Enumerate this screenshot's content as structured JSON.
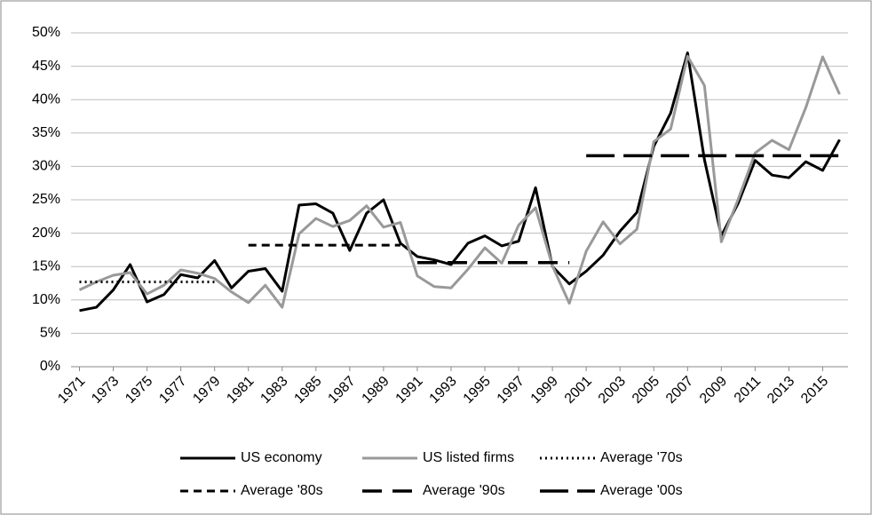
{
  "chart_data": {
    "type": "line",
    "x": [
      1971,
      1972,
      1973,
      1974,
      1975,
      1976,
      1977,
      1978,
      1979,
      1980,
      1981,
      1982,
      1983,
      1984,
      1985,
      1986,
      1987,
      1988,
      1989,
      1990,
      1991,
      1992,
      1993,
      1994,
      1995,
      1996,
      1997,
      1998,
      1999,
      2000,
      2001,
      2002,
      2003,
      2004,
      2005,
      2006,
      2007,
      2008,
      2009,
      2010,
      2011,
      2012,
      2013,
      2014,
      2015,
      2016
    ],
    "xlim": [
      1970.5,
      2016.5
    ],
    "xticks": [
      1971,
      1973,
      1975,
      1977,
      1979,
      1981,
      1983,
      1985,
      1987,
      1989,
      1991,
      1993,
      1995,
      1997,
      1999,
      2001,
      2003,
      2005,
      2007,
      2009,
      2011,
      2013,
      2015
    ],
    "ylim": [
      0,
      50
    ],
    "yticks": [
      {
        "value": 0,
        "label": "0%"
      },
      {
        "value": 5,
        "label": "5%"
      },
      {
        "value": 10,
        "label": "10%"
      },
      {
        "value": 15,
        "label": "15%"
      },
      {
        "value": 20,
        "label": "20%"
      },
      {
        "value": 25,
        "label": "25%"
      },
      {
        "value": 30,
        "label": "30%"
      },
      {
        "value": 35,
        "label": "35%"
      },
      {
        "value": 40,
        "label": "40%"
      },
      {
        "value": 45,
        "label": "45%"
      },
      {
        "value": 50,
        "label": "50%"
      }
    ],
    "grid": true,
    "series": [
      {
        "name": "US economy",
        "color": "#000000",
        "dash": "solid",
        "values": [
          8.4,
          8.9,
          11.5,
          15.3,
          9.7,
          10.8,
          13.8,
          13.3,
          15.9,
          11.8,
          14.3,
          14.7,
          11.3,
          24.2,
          24.4,
          23.0,
          17.4,
          23.0,
          25.0,
          18.5,
          16.5,
          16.0,
          15.3,
          18.5,
          19.6,
          18.1,
          18.8,
          26.8,
          15.0,
          12.4,
          14.3,
          16.7,
          20.3,
          23.1,
          33.0,
          38.0,
          47.0,
          31.0,
          19.6,
          24.5,
          30.9,
          28.7,
          28.3,
          30.7,
          29.4,
          34.0
        ]
      },
      {
        "name": "US listed firms",
        "color": "#999999",
        "dash": "solid",
        "values": [
          11.5,
          12.7,
          13.7,
          14.1,
          10.9,
          12.2,
          14.5,
          14.0,
          13.2,
          11.2,
          9.6,
          12.2,
          8.9,
          19.9,
          22.2,
          21.0,
          21.9,
          24.1,
          20.9,
          21.6,
          13.6,
          12.0,
          11.8,
          14.6,
          17.8,
          15.5,
          21.2,
          23.8,
          15.1,
          9.5,
          17.3,
          21.7,
          18.4,
          20.6,
          33.7,
          35.6,
          46.5,
          42.1,
          18.7,
          25.1,
          32.0,
          33.9,
          32.5,
          38.8,
          46.4,
          40.8
        ]
      },
      {
        "name": "Average '70s",
        "color": "#000000",
        "dash": "dotted",
        "values": [
          12.7,
          12.7,
          12.7,
          12.7,
          12.7,
          12.7,
          12.7,
          12.7,
          12.7,
          null,
          null,
          null,
          null,
          null,
          null,
          null,
          null,
          null,
          null,
          null,
          null,
          null,
          null,
          null,
          null,
          null,
          null,
          null,
          null,
          null,
          null,
          null,
          null,
          null,
          null,
          null,
          null,
          null,
          null,
          null,
          null,
          null,
          null,
          null,
          null,
          null
        ]
      },
      {
        "name": "Average '80s",
        "color": "#000000",
        "dash": "short",
        "values": [
          null,
          null,
          null,
          null,
          null,
          null,
          null,
          null,
          null,
          null,
          18.2,
          18.2,
          18.2,
          18.2,
          18.2,
          18.2,
          18.2,
          18.2,
          18.2,
          18.2,
          null,
          null,
          null,
          null,
          null,
          null,
          null,
          null,
          null,
          null,
          null,
          null,
          null,
          null,
          null,
          null,
          null,
          null,
          null,
          null,
          null,
          null,
          null,
          null,
          null,
          null
        ]
      },
      {
        "name": "Average '90s",
        "color": "#000000",
        "dash": "medium",
        "values": [
          null,
          null,
          null,
          null,
          null,
          null,
          null,
          null,
          null,
          null,
          null,
          null,
          null,
          null,
          null,
          null,
          null,
          null,
          null,
          null,
          15.6,
          15.6,
          15.6,
          15.6,
          15.6,
          15.6,
          15.6,
          15.6,
          15.6,
          15.6,
          null,
          null,
          null,
          null,
          null,
          null,
          null,
          null,
          null,
          null,
          null,
          null,
          null,
          null,
          null,
          null
        ]
      },
      {
        "name": "Average '00s",
        "color": "#000000",
        "dash": "long",
        "values": [
          null,
          null,
          null,
          null,
          null,
          null,
          null,
          null,
          null,
          null,
          null,
          null,
          null,
          null,
          null,
          null,
          null,
          null,
          null,
          null,
          null,
          null,
          null,
          null,
          null,
          null,
          null,
          null,
          null,
          null,
          31.6,
          31.6,
          31.6,
          31.6,
          31.6,
          31.6,
          31.6,
          31.6,
          31.6,
          31.6,
          31.6,
          31.6,
          31.6,
          31.6,
          31.6,
          31.6
        ]
      }
    ]
  }
}
